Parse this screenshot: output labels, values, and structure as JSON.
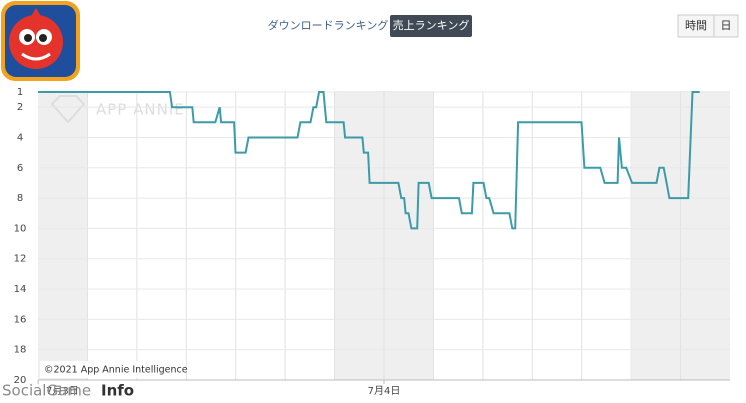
{
  "header": {
    "tabs": [
      "ダウンロードランキング",
      "売上ランキング"
    ],
    "active_tab": 1,
    "period_buttons": [
      "時間",
      "日"
    ]
  },
  "chart_data": {
    "type": "line",
    "watermark": "APP ANNIE",
    "copyright": "©2021 App Annie Intelligence",
    "x": [
      0,
      9.15,
      9.3,
      10.7,
      10.8,
      12.3,
      12.6,
      12.7,
      13.6,
      13.7,
      14.4,
      14.6,
      18.0,
      18.2,
      18.9,
      19.1,
      19.3,
      19.5,
      19.8,
      19.9,
      20.0,
      21.2,
      21.3,
      22.5,
      22.6,
      22.9,
      23.0,
      25.0,
      25.2,
      25.4,
      25.5,
      25.7,
      25.9,
      26.3,
      26.4,
      27.1,
      27.3,
      29.2,
      29.4,
      30.1,
      30.2,
      30.9,
      31.1,
      31.3,
      31.6,
      32.7,
      32.9,
      33.1,
      33.3,
      37.7,
      37.9,
      39.0,
      39.3,
      40.2,
      40.3,
      40.5,
      40.8,
      41.2,
      42.9,
      43.1,
      43.4,
      43.6,
      43.8,
      45.1,
      45.4,
      45.9
    ],
    "series": [
      {
        "name": "売上ランキング",
        "color": "#3d9ba8",
        "values": [
          1,
          1,
          2,
          2,
          3,
          3,
          2,
          3,
          3,
          5,
          5,
          4,
          4,
          3,
          3,
          2,
          2,
          1,
          1,
          2,
          3,
          3,
          4,
          4,
          5,
          5,
          7,
          7,
          8,
          8,
          9,
          9,
          10,
          10,
          7,
          7,
          8,
          8,
          9,
          9,
          7,
          7,
          8,
          8,
          9,
          9,
          10,
          10,
          3,
          3,
          6,
          6,
          7,
          7,
          4,
          6,
          6,
          7,
          7,
          6,
          6,
          7,
          8,
          8,
          1,
          1
        ]
      }
    ],
    "xlim": [
      0,
      48
    ],
    "xticks": [
      {
        "value": 0,
        "label": "7月3日"
      },
      {
        "value": 24,
        "label": "7月4日"
      }
    ],
    "ylim": [
      20,
      1
    ],
    "yticks": [
      1,
      2,
      4,
      6,
      8,
      10,
      12,
      14,
      16,
      18,
      20
    ],
    "grid": true
  },
  "footer_logo": [
    "SocialGame",
    "Info"
  ]
}
